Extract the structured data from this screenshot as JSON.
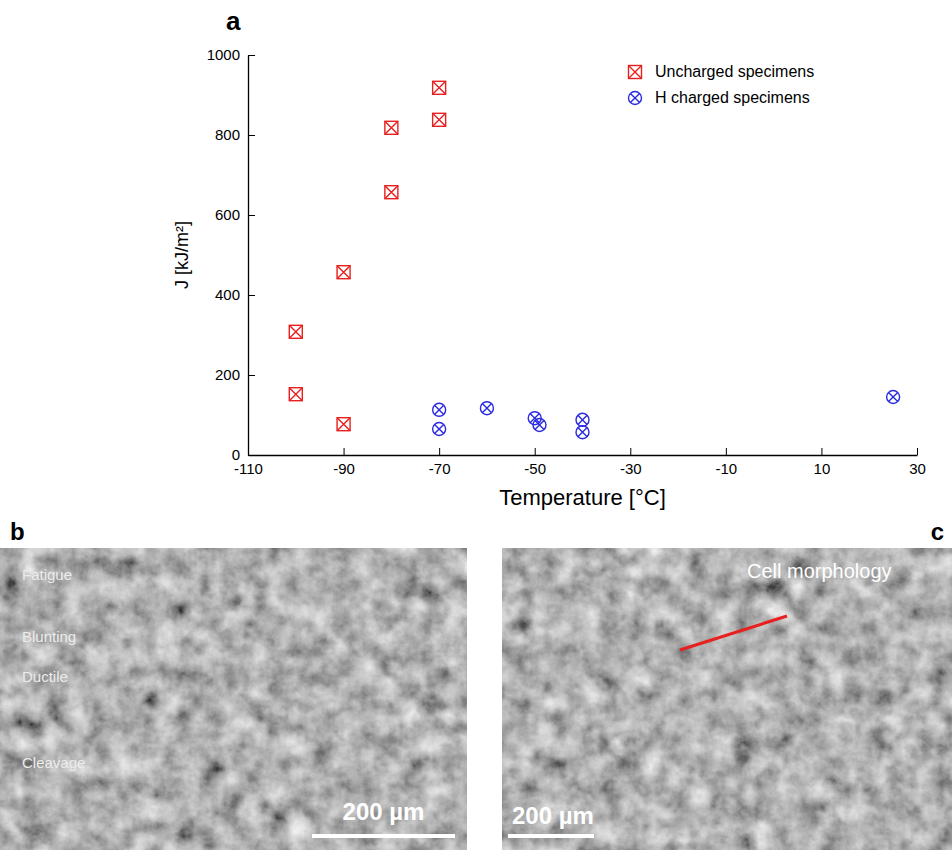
{
  "chart_data": {
    "type": "scatter",
    "panel": "a",
    "x_label": "Temperature [°C]",
    "y_label": "J [kJ/m²]",
    "xlim": [
      -110,
      30
    ],
    "xticks": [
      -110,
      -90,
      -70,
      -50,
      -30,
      -10,
      10,
      30
    ],
    "ylim": [
      0,
      1000
    ],
    "yticks": [
      0,
      200,
      400,
      600,
      800,
      1000
    ],
    "grid": false,
    "legend": "top-right",
    "series": [
      {
        "name": "Uncharged specimens",
        "color": "#e8201f",
        "marker": "square-cross",
        "x": [
          -100,
          -100,
          -90,
          -90,
          -80,
          -80,
          -70,
          -70
        ],
        "values": [
          308,
          152,
          457,
          77,
          818,
          657,
          918,
          838
        ]
      },
      {
        "name": "H charged specimens",
        "color": "#2a2ae0",
        "marker": "circle-cross",
        "x": [
          -70,
          -70,
          -60,
          -50,
          -49,
          -40,
          -40,
          25
        ],
        "values": [
          113,
          65,
          117,
          92,
          75,
          88,
          57,
          145
        ]
      }
    ]
  },
  "images": [
    {
      "panel": "b",
      "labels": [
        "Fatigue",
        "Blunting",
        "Ductile",
        "Cleavage"
      ],
      "scale_bar": "200 µm"
    },
    {
      "panel": "c",
      "annotation": "Cell morphology",
      "scale_bar": "200 µm"
    }
  ]
}
